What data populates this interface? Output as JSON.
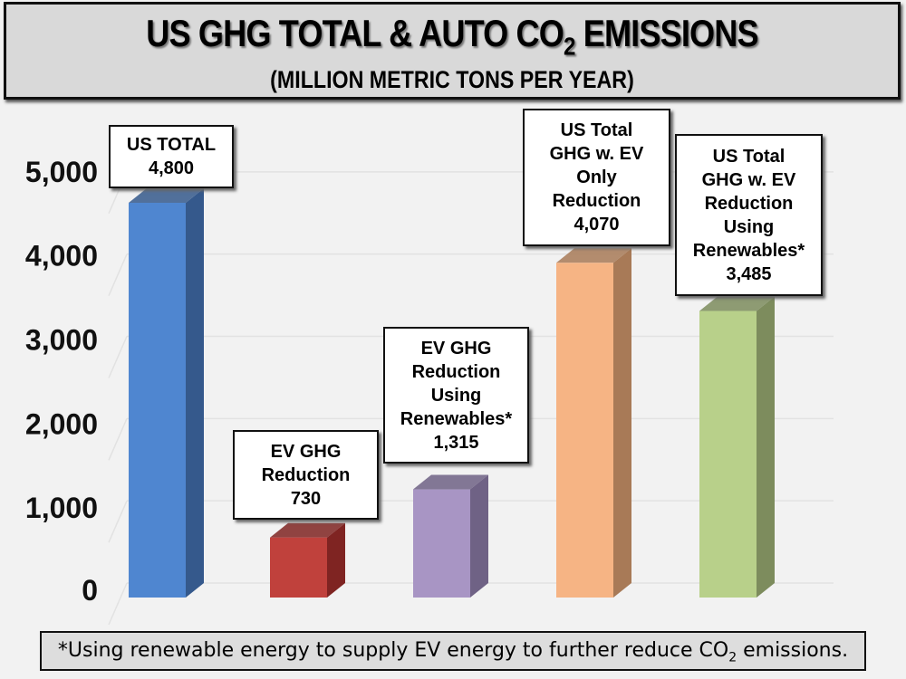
{
  "chart_data": {
    "type": "bar",
    "title": "US GHG TOTAL & AUTO CO2 EMISSIONS",
    "title_parts": {
      "main": "US GHG TOTAL & AUTO CO",
      "sub": "2",
      "rest": " EMISSIONS"
    },
    "subtitle": "(MILLION METRIC TONS PER YEAR)",
    "ylim": [
      0,
      5000
    ],
    "yticks": [
      "0",
      "1,000",
      "2,000",
      "3,000",
      "4,000",
      "5,000"
    ],
    "ytick_values": [
      0,
      1000,
      2000,
      3000,
      4000,
      5000
    ],
    "categories": [
      "US TOTAL",
      "EV GHG Reduction",
      "EV GHG Reduction Using Renewables*",
      "US Total GHG w. EV Only Reduction",
      "US Total GHG w. EV Reduction Using Renewables*"
    ],
    "values": [
      4800,
      730,
      1315,
      4070,
      3485
    ],
    "data_labels": [
      "US TOTAL\n4,800",
      "EV GHG\nReduction\n730",
      "EV GHG\nReduction\nUsing\nRenewables*\n1,315",
      "US Total\nGHG w. EV\nOnly\nReduction\n4,070",
      "US Total\nGHG w. EV\nReduction\nUsing\nRenewables*\n3,485"
    ],
    "colors": [
      "#4f86d0",
      "#c0413c",
      "#a895c4",
      "#f6b484",
      "#b8d08a"
    ],
    "side_colors": [
      "#35598c",
      "#7f2422",
      "#6f6285",
      "#a87a57",
      "#7d8c5d"
    ],
    "grid": true,
    "footnote": {
      "main": "*Using renewable energy to supply EV energy to further reduce CO",
      "sub": "2",
      "rest": " emissions."
    }
  }
}
